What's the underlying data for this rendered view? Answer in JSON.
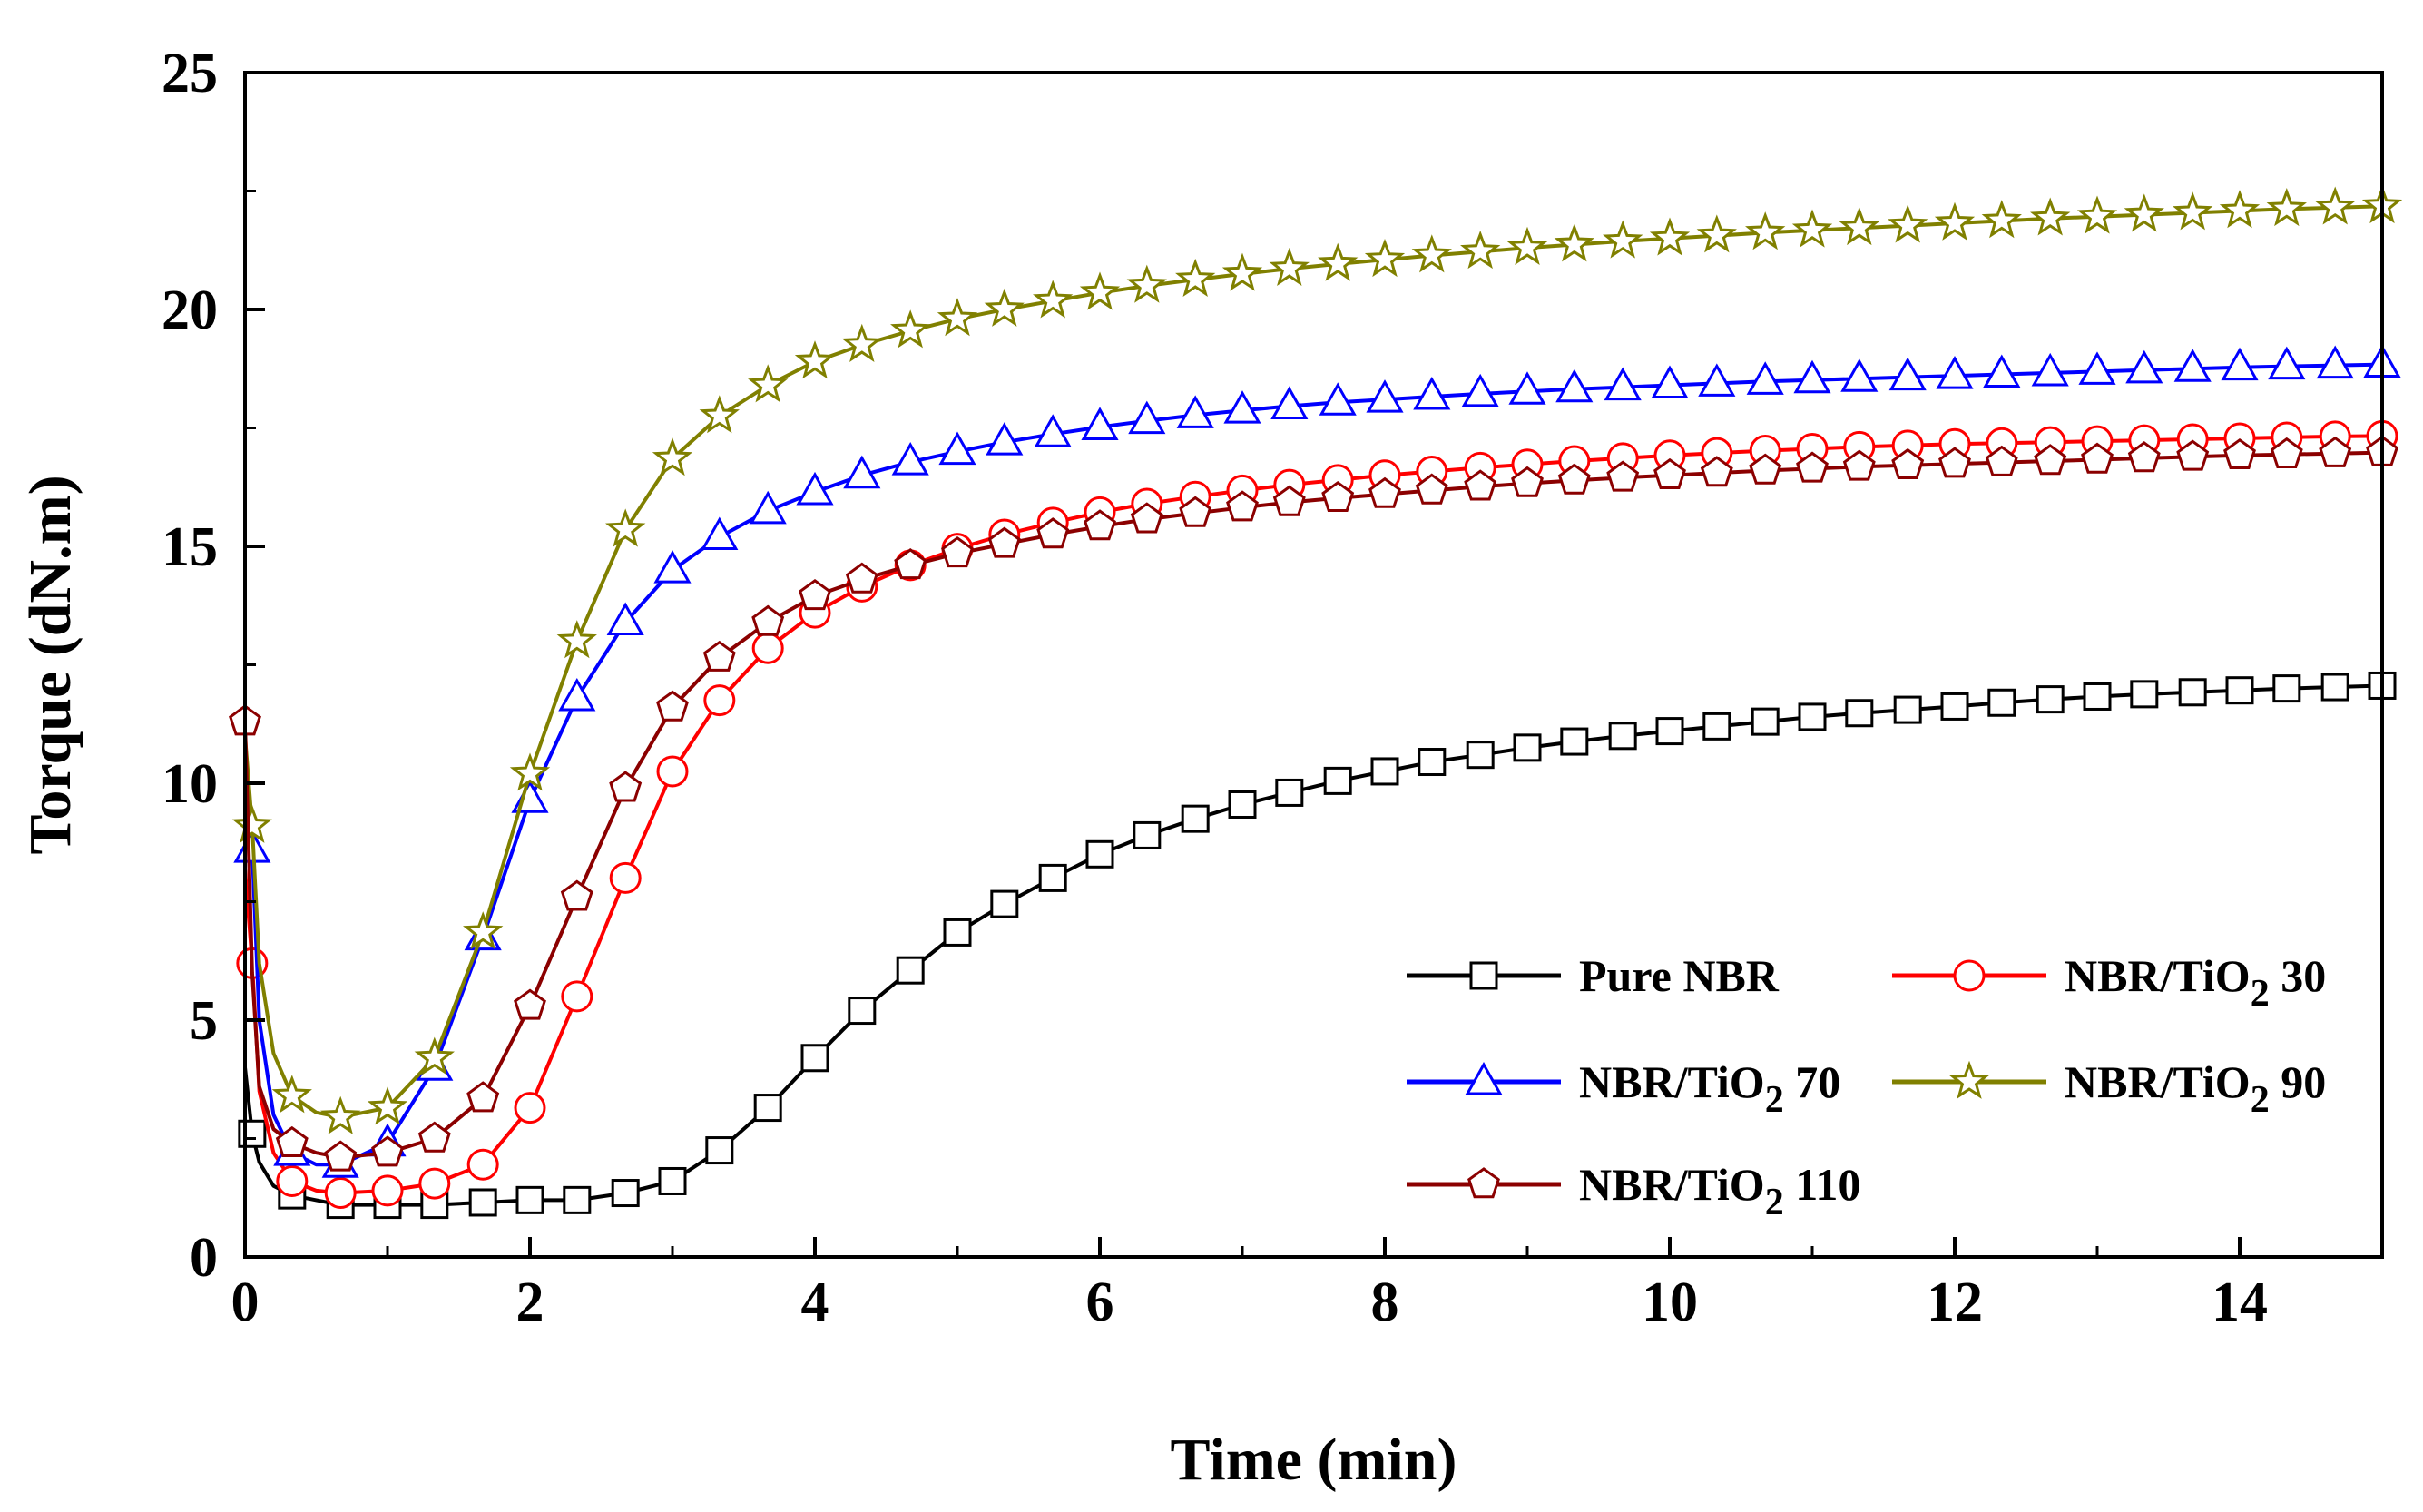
{
  "chart_data": {
    "type": "line",
    "title": "",
    "xlabel": "Time (min)",
    "ylabel": "Torque (dN.m)",
    "xlim": [
      0,
      15
    ],
    "ylim": [
      0,
      25
    ],
    "xticks": [
      "0",
      "2",
      "4",
      "6",
      "8",
      "10",
      "12",
      "14"
    ],
    "yticks": [
      "0",
      "5",
      "10",
      "15",
      "20",
      "25"
    ],
    "grid": false,
    "legend_position": "bottom-right",
    "series": [
      {
        "name": "Pure NBR",
        "legend_main": "Pure NBR",
        "legend_sub": "",
        "legend_suffix": "",
        "color": "#000000",
        "marker": "square",
        "x": [
          0,
          0.05,
          0.1,
          0.2,
          0.33,
          0.5,
          0.67,
          1.0,
          1.33,
          1.67,
          2.0,
          2.33,
          2.67,
          3.0,
          3.33,
          3.67,
          4.0,
          4.33,
          4.67,
          5.0,
          5.33,
          5.67,
          6.0,
          6.33,
          6.67,
          7.0,
          7.33,
          7.67,
          8.0,
          8.33,
          8.67,
          9.0,
          9.33,
          9.67,
          10.0,
          10.33,
          10.67,
          11.0,
          11.33,
          11.67,
          12.0,
          12.33,
          12.67,
          13.0,
          13.33,
          13.67,
          14.0,
          14.33,
          14.67,
          15.0
        ],
        "y": [
          4.0,
          2.6,
          2.0,
          1.5,
          1.3,
          1.2,
          1.1,
          1.1,
          1.1,
          1.15,
          1.2,
          1.2,
          1.35,
          1.6,
          2.25,
          3.15,
          4.2,
          5.2,
          6.05,
          6.85,
          7.45,
          8.0,
          8.5,
          8.9,
          9.25,
          9.55,
          9.8,
          10.05,
          10.25,
          10.45,
          10.6,
          10.75,
          10.88,
          11.0,
          11.1,
          11.2,
          11.3,
          11.4,
          11.48,
          11.55,
          11.62,
          11.7,
          11.77,
          11.83,
          11.88,
          11.92,
          11.96,
          12.0,
          12.03,
          12.06
        ],
        "marker_indices": [
          1,
          4,
          6,
          7,
          8,
          9,
          10,
          11,
          12,
          13,
          14,
          15,
          16,
          17,
          18,
          19,
          20,
          21,
          22,
          23,
          24,
          25,
          26,
          27,
          28,
          29,
          30,
          31,
          32,
          33,
          34,
          35,
          36,
          37,
          38,
          39,
          40,
          41,
          42,
          43,
          44,
          45,
          46,
          47,
          48,
          49
        ]
      },
      {
        "name": "NBR/TiO2 30",
        "legend_main": "NBR/TiO",
        "legend_sub": "2",
        "legend_suffix": " 30",
        "color": "#ff0000",
        "marker": "circle",
        "x": [
          0,
          0.05,
          0.1,
          0.2,
          0.33,
          0.5,
          0.67,
          1.0,
          1.33,
          1.67,
          2.0,
          2.33,
          2.67,
          3.0,
          3.33,
          3.67,
          4.0,
          4.33,
          4.67,
          5.0,
          5.33,
          5.67,
          6.0,
          6.33,
          6.67,
          7.0,
          7.33,
          7.67,
          8.0,
          8.33,
          8.67,
          9.0,
          9.33,
          9.67,
          10.0,
          10.33,
          10.67,
          11.0,
          11.33,
          11.67,
          12.0,
          12.33,
          12.67,
          13.0,
          13.33,
          13.67,
          14.0,
          14.33,
          14.67,
          15.0
        ],
        "y": [
          8.2,
          6.2,
          3.5,
          2.2,
          1.6,
          1.4,
          1.35,
          1.4,
          1.55,
          1.95,
          3.15,
          5.5,
          8.0,
          10.25,
          11.75,
          12.85,
          13.6,
          14.15,
          14.6,
          14.95,
          15.25,
          15.5,
          15.72,
          15.9,
          16.05,
          16.18,
          16.3,
          16.4,
          16.5,
          16.58,
          16.66,
          16.73,
          16.8,
          16.86,
          16.92,
          16.97,
          17.02,
          17.06,
          17.1,
          17.13,
          17.16,
          17.18,
          17.2,
          17.22,
          17.24,
          17.26,
          17.28,
          17.3,
          17.32,
          17.33
        ],
        "marker_indices": [
          1,
          4,
          6,
          7,
          8,
          9,
          10,
          11,
          12,
          13,
          14,
          15,
          16,
          17,
          18,
          19,
          20,
          21,
          22,
          23,
          24,
          25,
          26,
          27,
          28,
          29,
          30,
          31,
          32,
          33,
          34,
          35,
          36,
          37,
          38,
          39,
          40,
          41,
          42,
          43,
          44,
          45,
          46,
          47,
          48,
          49
        ]
      },
      {
        "name": "NBR/TiO2 70",
        "legend_main": "NBR/TiO",
        "legend_sub": "2",
        "legend_suffix": " 70",
        "color": "#0000ff",
        "marker": "triangle",
        "x": [
          0,
          0.05,
          0.1,
          0.2,
          0.33,
          0.5,
          0.67,
          1.0,
          1.33,
          1.67,
          2.0,
          2.33,
          2.67,
          3.0,
          3.33,
          3.67,
          4.0,
          4.33,
          4.67,
          5.0,
          5.33,
          5.67,
          6.0,
          6.33,
          6.67,
          7.0,
          7.33,
          7.67,
          8.0,
          8.33,
          8.67,
          9.0,
          9.33,
          9.67,
          10.0,
          10.33,
          10.67,
          11.0,
          11.33,
          11.67,
          12.0,
          12.33,
          12.67,
          13.0,
          13.33,
          13.67,
          14.0,
          14.33,
          14.67,
          15.0
        ],
        "y": [
          10.5,
          8.6,
          5.0,
          3.0,
          2.2,
          1.95,
          1.95,
          2.4,
          4.0,
          6.75,
          9.65,
          11.8,
          13.4,
          14.5,
          15.2,
          15.75,
          16.15,
          16.5,
          16.78,
          17.0,
          17.2,
          17.37,
          17.52,
          17.65,
          17.77,
          17.87,
          17.96,
          18.04,
          18.1,
          18.16,
          18.22,
          18.27,
          18.32,
          18.36,
          18.4,
          18.44,
          18.48,
          18.51,
          18.54,
          18.57,
          18.6,
          18.63,
          18.66,
          18.69,
          18.72,
          18.75,
          18.78,
          18.8,
          18.82,
          18.84
        ],
        "marker_indices": [
          1,
          4,
          6,
          7,
          8,
          9,
          10,
          11,
          12,
          13,
          14,
          15,
          16,
          17,
          18,
          19,
          20,
          21,
          22,
          23,
          24,
          25,
          26,
          27,
          28,
          29,
          30,
          31,
          32,
          33,
          34,
          35,
          36,
          37,
          38,
          39,
          40,
          41,
          42,
          43,
          44,
          45,
          46,
          47,
          48,
          49
        ]
      },
      {
        "name": "NBR/TiO2 90",
        "legend_main": "NBR/TiO",
        "legend_sub": "2",
        "legend_suffix": " 90",
        "color": "#808000",
        "marker": "star",
        "x": [
          0,
          0.05,
          0.1,
          0.2,
          0.33,
          0.5,
          0.67,
          1.0,
          1.33,
          1.67,
          2.0,
          2.33,
          2.67,
          3.0,
          3.33,
          3.67,
          4.0,
          4.33,
          4.67,
          5.0,
          5.33,
          5.67,
          6.0,
          6.33,
          6.67,
          7.0,
          7.33,
          7.67,
          8.0,
          8.33,
          8.67,
          9.0,
          9.33,
          9.67,
          10.0,
          10.33,
          10.67,
          11.0,
          11.33,
          11.67,
          12.0,
          12.33,
          12.67,
          13.0,
          13.33,
          13.67,
          14.0,
          14.33,
          14.67,
          15.0
        ],
        "y": [
          11.0,
          9.1,
          6.2,
          4.3,
          3.4,
          3.05,
          2.95,
          3.15,
          4.2,
          6.85,
          10.2,
          13.0,
          15.35,
          16.85,
          17.75,
          18.4,
          18.9,
          19.25,
          19.55,
          19.8,
          20.0,
          20.18,
          20.35,
          20.5,
          20.63,
          20.75,
          20.86,
          20.96,
          21.05,
          21.14,
          21.22,
          21.3,
          21.37,
          21.44,
          21.5,
          21.56,
          21.62,
          21.67,
          21.72,
          21.77,
          21.82,
          21.87,
          21.92,
          21.96,
          22.0,
          22.04,
          22.08,
          22.12,
          22.15,
          22.18
        ],
        "marker_indices": [
          1,
          4,
          6,
          7,
          8,
          9,
          10,
          11,
          12,
          13,
          14,
          15,
          16,
          17,
          18,
          19,
          20,
          21,
          22,
          23,
          24,
          25,
          26,
          27,
          28,
          29,
          30,
          31,
          32,
          33,
          34,
          35,
          36,
          37,
          38,
          39,
          40,
          41,
          42,
          43,
          44,
          45,
          46,
          47,
          48,
          49
        ]
      },
      {
        "name": "NBR/TiO2 110",
        "legend_main": "NBR/TiO",
        "legend_sub": "2",
        "legend_suffix": " 110",
        "color": "#8b0000",
        "marker": "pentagon",
        "x": [
          0,
          0.05,
          0.1,
          0.2,
          0.33,
          0.5,
          0.67,
          1.0,
          1.33,
          1.67,
          2.0,
          2.33,
          2.67,
          3.0,
          3.33,
          3.67,
          4.0,
          4.33,
          4.67,
          5.0,
          5.33,
          5.67,
          6.0,
          6.33,
          6.67,
          7.0,
          7.33,
          7.67,
          8.0,
          8.33,
          8.67,
          9.0,
          9.33,
          9.67,
          10.0,
          10.33,
          10.67,
          11.0,
          11.33,
          11.67,
          12.0,
          12.33,
          12.67,
          13.0,
          13.33,
          13.67,
          14.0,
          14.33,
          14.67,
          15.0
        ],
        "y": [
          11.3,
          6.0,
          3.6,
          2.7,
          2.4,
          2.2,
          2.1,
          2.2,
          2.5,
          3.35,
          5.3,
          7.6,
          9.9,
          11.6,
          12.65,
          13.4,
          13.95,
          14.3,
          14.6,
          14.85,
          15.05,
          15.25,
          15.42,
          15.57,
          15.7,
          15.82,
          15.93,
          16.02,
          16.1,
          16.18,
          16.26,
          16.33,
          16.39,
          16.45,
          16.5,
          16.55,
          16.6,
          16.64,
          16.68,
          16.71,
          16.74,
          16.77,
          16.8,
          16.83,
          16.86,
          16.89,
          16.92,
          16.94,
          16.96,
          16.98
        ],
        "marker_indices": [
          0,
          4,
          6,
          7,
          8,
          9,
          10,
          11,
          12,
          13,
          14,
          15,
          16,
          17,
          18,
          19,
          20,
          21,
          22,
          23,
          24,
          25,
          26,
          27,
          28,
          29,
          30,
          31,
          32,
          33,
          34,
          35,
          36,
          37,
          38,
          39,
          40,
          41,
          42,
          43,
          44,
          45,
          46,
          47,
          48,
          49
        ]
      }
    ]
  }
}
